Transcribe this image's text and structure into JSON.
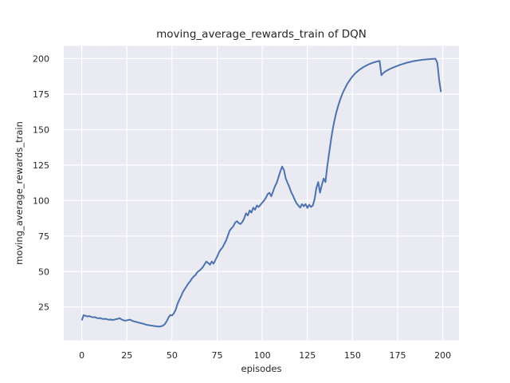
{
  "figure": {
    "background": "#ffffff"
  },
  "chart_data": {
    "type": "line",
    "title": "moving_average_rewards_train of DQN",
    "xlabel": "episodes",
    "ylabel": "moving_average_rewards_train",
    "x_ticks": [
      0,
      25,
      50,
      75,
      100,
      125,
      150,
      175,
      200
    ],
    "y_ticks": [
      25,
      50,
      75,
      100,
      125,
      150,
      175,
      200
    ],
    "xlim": [
      -10,
      209
    ],
    "ylim": [
      1.5,
      209
    ],
    "grid": true,
    "legend_position": "none",
    "plot_background": "#eaeaf2",
    "grid_color": "#ffffff",
    "text_color": "#262626",
    "series": [
      {
        "name": "DQN",
        "color": "#4c72b0",
        "x_is_episode_index": true,
        "values": [
          15.5,
          19.2,
          18.8,
          18.3,
          18.6,
          18.1,
          17.7,
          17.9,
          17.4,
          17.0,
          17.2,
          16.8,
          16.5,
          16.7,
          16.3,
          16.0,
          16.2,
          15.8,
          16.1,
          16.4,
          16.7,
          17.1,
          16.2,
          15.7,
          15.3,
          15.6,
          15.9,
          16.0,
          15.2,
          14.8,
          14.5,
          14.2,
          13.8,
          13.5,
          13.2,
          12.8,
          12.4,
          12.2,
          12.0,
          11.8,
          11.6,
          11.4,
          11.3,
          11.2,
          11.4,
          11.9,
          12.9,
          14.8,
          17.5,
          19.3,
          19.0,
          20.5,
          23.0,
          27.0,
          30.0,
          32.5,
          35.5,
          37.5,
          39.5,
          41.5,
          43.0,
          45.0,
          46.5,
          47.5,
          49.5,
          50.5,
          51.5,
          53.0,
          55.0,
          57.0,
          56.0,
          54.8,
          57.0,
          55.5,
          58.0,
          60.5,
          63.5,
          65.5,
          67.0,
          69.5,
          72.0,
          75.5,
          79.0,
          80.5,
          82.0,
          84.5,
          85.5,
          84.0,
          83.5,
          85.0,
          87.5,
          91.0,
          89.5,
          93.0,
          91.5,
          95.0,
          93.5,
          96.5,
          95.5,
          97.0,
          98.5,
          100.0,
          102.0,
          104.5,
          105.5,
          103.0,
          106.5,
          110.0,
          112.5,
          116.5,
          120.5,
          124.0,
          121.5,
          115.5,
          112.5,
          109.5,
          106.0,
          103.5,
          100.5,
          98.0,
          96.5,
          95.0,
          97.5,
          96.0,
          97.5,
          94.8,
          97.0,
          95.5,
          96.5,
          101.0,
          109.0,
          113.0,
          105.5,
          111.0,
          115.5,
          113.0,
          124.0,
          133.0,
          142.0,
          150.0,
          156.5,
          162.0,
          166.5,
          170.5,
          174.0,
          177.0,
          179.5,
          182.0,
          184.0,
          185.8,
          187.5,
          189.0,
          190.2,
          191.3,
          192.3,
          193.2,
          194.0,
          194.7,
          195.4,
          196.0,
          196.5,
          197.0,
          197.4,
          197.8,
          198.1,
          198.4,
          188.3,
          189.8,
          190.8,
          191.6,
          192.3,
          192.9,
          193.5,
          194.0,
          194.5,
          195.0,
          195.5,
          195.9,
          196.3,
          196.7,
          197.1,
          197.4,
          197.7,
          198.0,
          198.3,
          198.5,
          198.7,
          198.9,
          199.1,
          199.3,
          199.4,
          199.5,
          199.6,
          199.7,
          199.8,
          199.85,
          199.9,
          197.0,
          185.0,
          176.5
        ]
      }
    ]
  }
}
